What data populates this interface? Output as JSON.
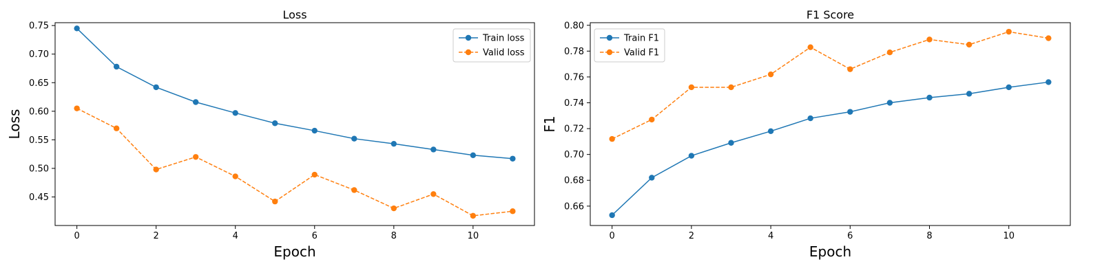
{
  "chart_data": [
    {
      "type": "line",
      "title": "Loss",
      "xlabel": "Epoch",
      "ylabel": "Loss",
      "x": [
        0,
        1,
        2,
        3,
        4,
        5,
        6,
        7,
        8,
        9,
        10,
        11
      ],
      "xlim": [
        -0.55,
        11.55
      ],
      "ylim": [
        0.4,
        0.755
      ],
      "xticks": [
        0,
        2,
        4,
        6,
        8,
        10
      ],
      "yticks": [
        0.45,
        0.5,
        0.55,
        0.6,
        0.65,
        0.7,
        0.75
      ],
      "ytick_labels": [
        "0.45",
        "0.50",
        "0.55",
        "0.60",
        "0.65",
        "0.70",
        "0.75"
      ],
      "legend_position": "upper right",
      "grid": false,
      "series": [
        {
          "name": "Train loss",
          "color": "#1f77b4",
          "linestyle": "solid",
          "marker": "circle",
          "values": [
            0.745,
            0.678,
            0.642,
            0.616,
            0.597,
            0.579,
            0.566,
            0.552,
            0.543,
            0.533,
            0.523,
            0.517
          ]
        },
        {
          "name": "Valid loss",
          "color": "#ff7f0e",
          "linestyle": "dashed",
          "marker": "circle",
          "values": [
            0.605,
            0.57,
            0.498,
            0.52,
            0.486,
            0.442,
            0.489,
            0.462,
            0.43,
            0.455,
            0.417,
            0.425
          ]
        }
      ]
    },
    {
      "type": "line",
      "title": "F1 Score",
      "xlabel": "Epoch",
      "ylabel": "F1",
      "x": [
        0,
        1,
        2,
        3,
        4,
        5,
        6,
        7,
        8,
        9,
        10,
        11
      ],
      "xlim": [
        -0.55,
        11.55
      ],
      "ylim": [
        0.645,
        0.802
      ],
      "xticks": [
        0,
        2,
        4,
        6,
        8,
        10
      ],
      "yticks": [
        0.66,
        0.68,
        0.7,
        0.72,
        0.74,
        0.76,
        0.78,
        0.8
      ],
      "ytick_labels": [
        "0.66",
        "0.68",
        "0.70",
        "0.72",
        "0.74",
        "0.76",
        "0.78",
        "0.80"
      ],
      "legend_position": "upper left",
      "grid": false,
      "series": [
        {
          "name": "Train F1",
          "color": "#1f77b4",
          "linestyle": "solid",
          "marker": "circle",
          "values": [
            0.653,
            0.682,
            0.699,
            0.709,
            0.718,
            0.728,
            0.733,
            0.74,
            0.744,
            0.747,
            0.752,
            0.756
          ]
        },
        {
          "name": "Valid F1",
          "color": "#ff7f0e",
          "linestyle": "dashed",
          "marker": "circle",
          "values": [
            0.712,
            0.727,
            0.752,
            0.752,
            0.762,
            0.783,
            0.766,
            0.779,
            0.789,
            0.785,
            0.795,
            0.79
          ]
        }
      ]
    }
  ]
}
